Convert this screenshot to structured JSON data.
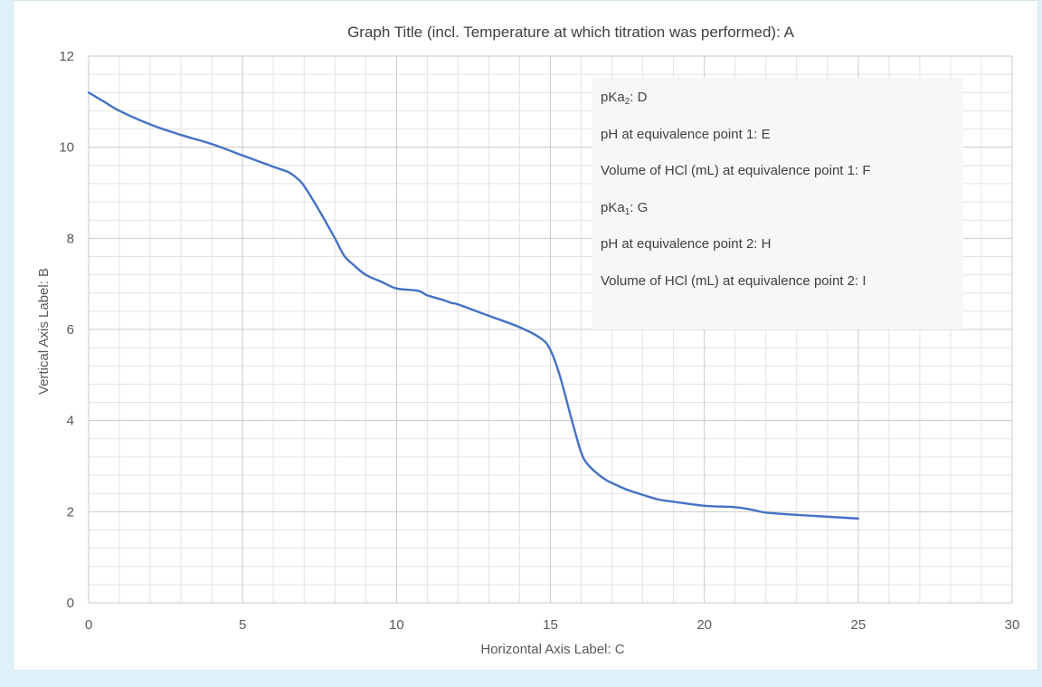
{
  "chart_data": {
    "type": "line",
    "title": "Graph Title (incl. Temperature at which titration was performed): A",
    "xlabel": "Horizontal Axis Label: C",
    "ylabel": "Vertical Axis Label: B",
    "xlim": [
      0,
      30
    ],
    "ylim": [
      0,
      12
    ],
    "x_ticks": [
      "0",
      "5",
      "10",
      "15",
      "20",
      "25",
      "30"
    ],
    "y_ticks": [
      "0",
      "2",
      "4",
      "6",
      "8",
      "10",
      "12"
    ],
    "grid": true,
    "series_color": "#4472c4",
    "series": [
      {
        "x": [
          0,
          0.5,
          1,
          2,
          3,
          4,
          5,
          6,
          6.5,
          6.8,
          7,
          7.5,
          8,
          8.3,
          8.6,
          9,
          9.5,
          10,
          10.7,
          11,
          11.5,
          11.8,
          12,
          13,
          14,
          14.7,
          15,
          15.3,
          15.7,
          16,
          16.2,
          16.5,
          16.8,
          17,
          17.5,
          18,
          18.5,
          19,
          20,
          21,
          21.5,
          22,
          23,
          24,
          25
        ],
        "y": [
          11.2,
          11.0,
          10.8,
          10.5,
          10.27,
          10.07,
          9.82,
          9.57,
          9.45,
          9.3,
          9.15,
          8.6,
          8.0,
          7.62,
          7.42,
          7.2,
          7.05,
          6.9,
          6.85,
          6.75,
          6.65,
          6.58,
          6.55,
          6.3,
          6.05,
          5.8,
          5.55,
          5.0,
          4.0,
          3.3,
          3.05,
          2.85,
          2.7,
          2.63,
          2.48,
          2.37,
          2.27,
          2.22,
          2.13,
          2.1,
          2.05,
          1.98,
          1.93,
          1.89,
          1.85
        ]
      }
    ]
  },
  "annotations": {
    "pka2": {
      "prefix": "pKa",
      "sub": "2",
      "suffix": ": D"
    },
    "ph_eq1": "pH at equivalence point 1: E",
    "vol_eq1": "Volume of HCl (mL) at equivalence point 1: F",
    "pka1": {
      "prefix": "pKa",
      "sub": "1",
      "suffix": ": G"
    },
    "ph_eq2": "pH at equivalence point 2: H",
    "vol_eq2": "Volume of HCl (mL) at equivalence point 2: I"
  }
}
